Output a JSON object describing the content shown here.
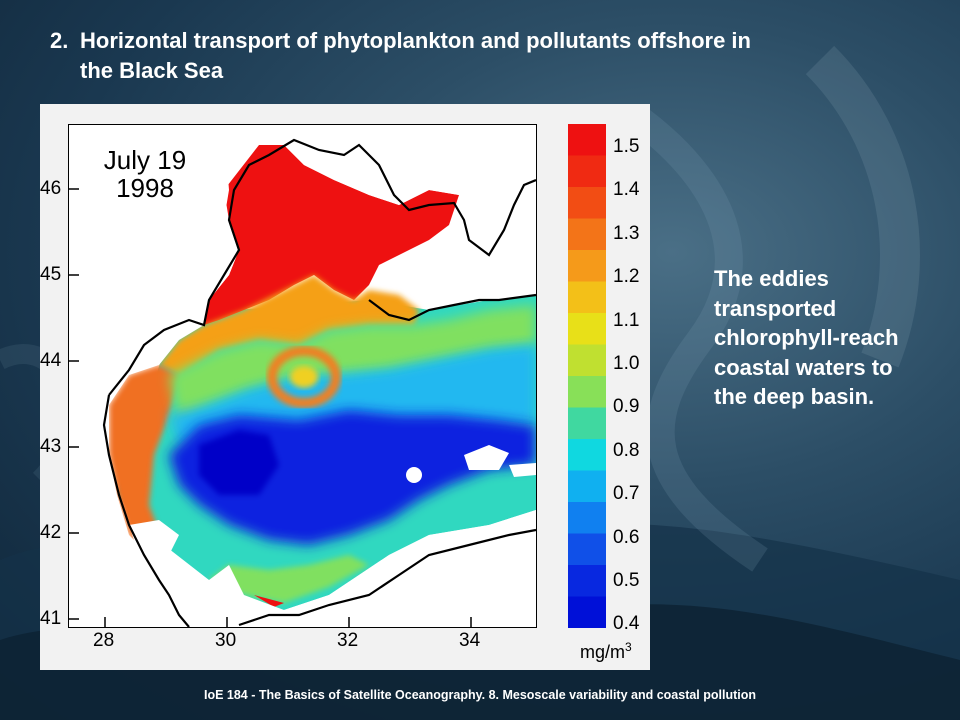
{
  "slide": {
    "title_number": "2.",
    "title_line1": "Horizontal transport of phytoplankton and pollutants offshore in",
    "title_line2": "the Black Sea",
    "side_text": "The eddies transported chlorophyll-reach coastal waters to the deep basin.",
    "footer": "IoE 184 - The Basics of Satellite Oceanography. 8. Mesoscale variability  and coastal pollution"
  },
  "map": {
    "date_line1": "July 19",
    "date_line2": "1998",
    "lat_labels": [
      "46",
      "45",
      "44",
      "43",
      "42",
      "41"
    ],
    "lon_labels": [
      "28",
      "30",
      "32",
      "34"
    ],
    "colorbar_labels": [
      "1.5",
      "1.4",
      "1.3",
      "1.2",
      "1.1",
      "1.0",
      "0.9",
      "0.8",
      "0.7",
      "0.6",
      "0.5",
      "0.4"
    ],
    "units": "mg/m",
    "units_sup": "3"
  },
  "colors": {
    "high": "#ee1111",
    "low": "#0000dd",
    "scale": [
      "#ee1111",
      "#f02a12",
      "#f24d14",
      "#f37418",
      "#f59a1a",
      "#f3c018",
      "#e8e018",
      "#c0e030",
      "#88e058",
      "#40d8a0",
      "#10d8e0",
      "#10b0f0",
      "#1080f0",
      "#1050e8",
      "#0828e0",
      "#0010d8"
    ]
  }
}
